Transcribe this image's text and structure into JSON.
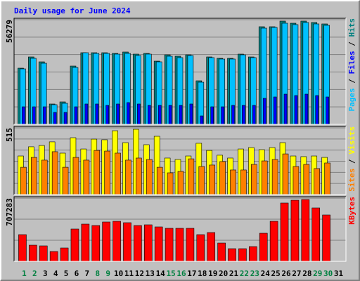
{
  "chart_data": [
    {
      "type": "bar",
      "title": "Daily usage for June 2024",
      "categories": [
        1,
        2,
        3,
        4,
        5,
        6,
        7,
        8,
        9,
        10,
        11,
        12,
        13,
        14,
        15,
        16,
        17,
        18,
        19,
        20,
        21,
        22,
        23,
        24,
        25,
        26,
        27,
        28,
        29,
        30,
        31
      ],
      "category_colors": [
        "#008040",
        "#008040",
        "#000000",
        "#000000",
        "#000000",
        "#000000",
        "#000000",
        "#008040",
        "#008040",
        "#000000",
        "#000000",
        "#000000",
        "#000000",
        "#000000",
        "#008040",
        "#008040",
        "#000000",
        "#000000",
        "#000000",
        "#000000",
        "#000000",
        "#008040",
        "#008040",
        "#000000",
        "#000000",
        "#000000",
        "#000000",
        "#000000",
        "#008040",
        "#008040",
        "#000000"
      ],
      "ylim": [
        0,
        56279
      ],
      "yticks": [
        56279
      ],
      "grid": true,
      "legend_separator": " / ",
      "series": [
        {
          "name": "Pages",
          "color": "#00c0ff",
          "values": [
            29838,
            35504,
            32860,
            10576,
            11331,
            30594,
            38525,
            38148,
            38148,
            37770,
            38148,
            37015,
            37770,
            33615,
            36637,
            35882,
            37015,
            22662,
            35882,
            35126,
            35126,
            37392,
            35882,
            51745,
            52123,
            54389,
            53633,
            54767,
            54011,
            53256,
            null
          ]
        },
        {
          "name": "Files",
          "color": "#0000ff",
          "values": [
            9443,
            9443,
            9443,
            6421,
            6421,
            9443,
            10953,
            10953,
            10198,
            10953,
            11709,
            10953,
            10198,
            10198,
            10198,
            10198,
            10953,
            4532,
            9443,
            9443,
            10198,
            10198,
            10198,
            13975,
            14730,
            16241,
            15486,
            16241,
            15486,
            14730,
            null
          ]
        },
        {
          "name": "Hits",
          "color": "#008080",
          "values": [
            30216,
            36259,
            33615,
            10953,
            12086,
            31349,
            38525,
            38525,
            38525,
            38148,
            38903,
            37770,
            38148,
            33993,
            37392,
            36637,
            37392,
            23417,
            36259,
            35504,
            35504,
            37770,
            36259,
            52500,
            52500,
            55522,
            54389,
            55522,
            54767,
            54011,
            null
          ]
        }
      ]
    },
    {
      "type": "bar",
      "ylim": [
        0,
        515
      ],
      "yticks": [
        515
      ],
      "grid": true,
      "legend_separator": " / ",
      "series": [
        {
          "name": "Sites",
          "color": "#ff8000",
          "values": [
            211,
            287,
            266,
            331,
            211,
            287,
            266,
            341,
            336,
            320,
            266,
            282,
            271,
            211,
            168,
            179,
            276,
            217,
            228,
            255,
            190,
            190,
            233,
            260,
            271,
            314,
            217,
            233,
            201,
            244,
            null
          ]
        },
        {
          "name": "Visits",
          "color": "#ffff00",
          "values": [
            298,
            369,
            379,
            407,
            320,
            439,
            352,
            428,
            423,
            493,
            401,
            504,
            385,
            450,
            282,
            271,
            298,
            396,
            341,
            304,
            282,
            352,
            363,
            347,
            363,
            401,
            298,
            293,
            298,
            287,
            null
          ]
        }
      ]
    },
    {
      "type": "bar",
      "ylim": [
        0,
        707283
      ],
      "yticks": [
        707283
      ],
      "grid": true,
      "series": [
        {
          "name": "KBytes",
          "color": "#ff0000",
          "values": [
            298642,
            180757,
            172898,
            110026,
            149321,
            361514,
            416527,
            400809,
            440104,
            447963,
            432245,
            400809,
            408668,
            385091,
            369373,
            369373,
            369373,
            298642,
            322219,
            204334,
            141462,
            141462,
            165039,
            314360,
            447963,
            652297,
            683733,
            691592,
            597284,
            518694,
            null
          ]
        }
      ]
    }
  ]
}
